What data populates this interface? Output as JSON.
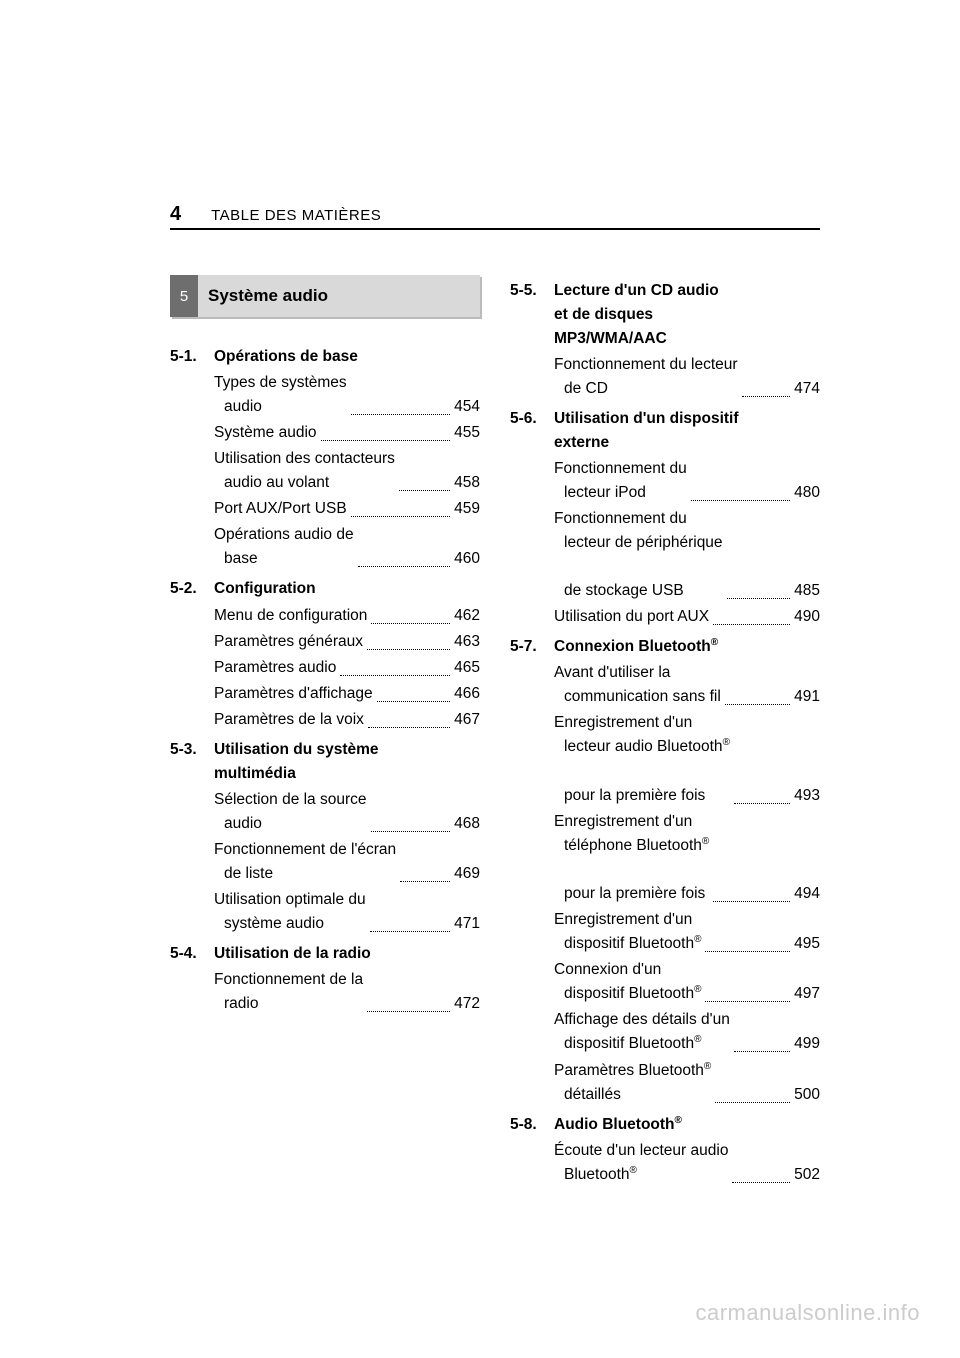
{
  "header": {
    "page_number": "4",
    "title": "TABLE DES MATIÈRES"
  },
  "chapter": {
    "number": "5",
    "title": "Système audio"
  },
  "left_sections": [
    {
      "num": "5-1.",
      "title": "Opérations de base",
      "entries": [
        {
          "lines": [
            "Types de systèmes",
            "audio"
          ],
          "page": "454"
        },
        {
          "lines": [
            "Système audio"
          ],
          "page": "455"
        },
        {
          "lines": [
            "Utilisation des contacteurs",
            "audio au volant"
          ],
          "page": "458"
        },
        {
          "lines": [
            "Port AUX/Port USB"
          ],
          "page": "459"
        },
        {
          "lines": [
            "Opérations audio de",
            "base"
          ],
          "page": "460"
        }
      ]
    },
    {
      "num": "5-2.",
      "title": "Configuration",
      "entries": [
        {
          "lines": [
            "Menu de configuration"
          ],
          "page": "462"
        },
        {
          "lines": [
            "Paramètres généraux"
          ],
          "page": "463"
        },
        {
          "lines": [
            "Paramètres audio"
          ],
          "page": "465"
        },
        {
          "lines": [
            "Paramètres d'affichage"
          ],
          "page": "466"
        },
        {
          "lines": [
            "Paramètres de la voix"
          ],
          "page": "467"
        }
      ]
    },
    {
      "num": "5-3.",
      "title_lines": [
        "Utilisation du système",
        "multimédia"
      ],
      "entries": [
        {
          "lines": [
            "Sélection de la source",
            "audio"
          ],
          "page": "468"
        },
        {
          "lines": [
            "Fonctionnement de l'écran",
            "de liste"
          ],
          "page": "469"
        },
        {
          "lines": [
            "Utilisation optimale du",
            "système audio"
          ],
          "page": "471"
        }
      ]
    },
    {
      "num": "5-4.",
      "title": "Utilisation de la radio",
      "entries": [
        {
          "lines": [
            "Fonctionnement de la",
            "radio"
          ],
          "page": "472"
        }
      ]
    }
  ],
  "right_sections": [
    {
      "num": "5-5.",
      "title_lines": [
        "Lecture d'un CD audio",
        "et de disques",
        "MP3/WMA/AAC"
      ],
      "entries": [
        {
          "lines": [
            "Fonctionnement du lecteur",
            "de CD"
          ],
          "page": "474"
        }
      ]
    },
    {
      "num": "5-6.",
      "title_lines": [
        "Utilisation d'un dispositif",
        "externe"
      ],
      "entries": [
        {
          "lines": [
            "Fonctionnement du",
            "lecteur iPod"
          ],
          "page": "480"
        },
        {
          "lines": [
            "Fonctionnement du",
            "lecteur de périphérique",
            "de stockage USB"
          ],
          "page": "485"
        },
        {
          "lines": [
            "Utilisation du port AUX"
          ],
          "page": "490"
        }
      ]
    },
    {
      "num": "5-7.",
      "title_html": "Connexion Bluetooth<sup class=\"reg\">®</sup>",
      "entries": [
        {
          "lines": [
            "Avant d'utiliser la",
            "communication sans fil"
          ],
          "page": "491"
        },
        {
          "html_lines": [
            "Enregistrement d'un",
            "lecteur audio Bluetooth<sup class=\"reg\">®</sup>",
            "pour la première fois"
          ],
          "page": "493"
        },
        {
          "html_lines": [
            "Enregistrement d'un",
            "téléphone Bluetooth<sup class=\"reg\">®</sup>",
            "pour la première fois"
          ],
          "page": "494"
        },
        {
          "html_lines": [
            "Enregistrement d'un",
            "dispositif Bluetooth<sup class=\"reg\">®</sup>"
          ],
          "page": "495"
        },
        {
          "html_lines": [
            "Connexion d'un",
            "dispositif Bluetooth<sup class=\"reg\">®</sup>"
          ],
          "page": "497"
        },
        {
          "html_lines": [
            "Affichage des détails d'un",
            "dispositif Bluetooth<sup class=\"reg\">®</sup>"
          ],
          "page": "499"
        },
        {
          "html_lines": [
            "Paramètres Bluetooth<sup class=\"reg\">®</sup>",
            "détaillés"
          ],
          "page": "500"
        }
      ]
    },
    {
      "num": "5-8.",
      "title_html": "Audio Bluetooth<sup class=\"reg\">®</sup>",
      "entries": [
        {
          "html_lines": [
            "Écoute d'un lecteur audio",
            "Bluetooth<sup class=\"reg\">®</sup>"
          ],
          "page": "502"
        }
      ]
    }
  ],
  "watermark": "carmanualsonline.info"
}
